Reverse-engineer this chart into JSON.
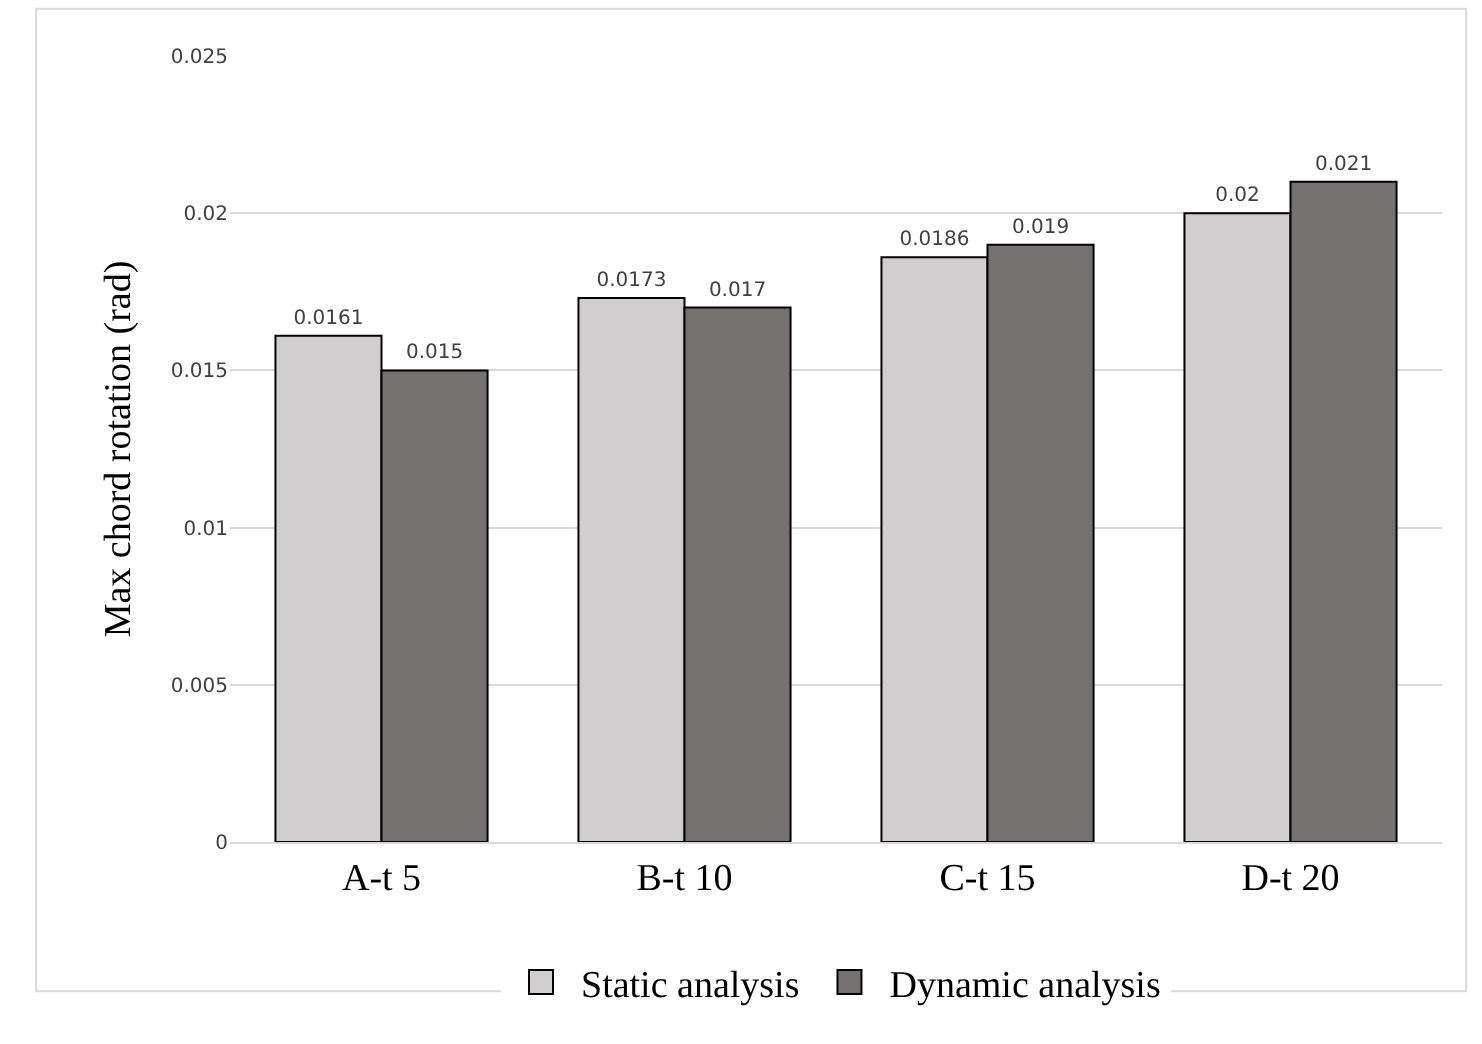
{
  "chart_data": {
    "type": "bar",
    "ylabel": "Max chord rotation (rad)",
    "categories": [
      "A-t 5",
      "B-t 10",
      "C-t 15",
      "D-t 20"
    ],
    "series": [
      {
        "name": "Static analysis",
        "color": "#d0cece",
        "values": [
          0.0161,
          0.0173,
          0.0186,
          0.02
        ]
      },
      {
        "name": "Dynamic analysis",
        "color": "#767171",
        "values": [
          0.015,
          0.017,
          0.019,
          0.021
        ]
      }
    ],
    "ylim": [
      0,
      0.025
    ],
    "yticks": [
      0,
      0.005,
      0.01,
      0.015,
      0.02,
      0.025
    ],
    "grid": "y",
    "legend": "bottom",
    "data_labels": true
  }
}
